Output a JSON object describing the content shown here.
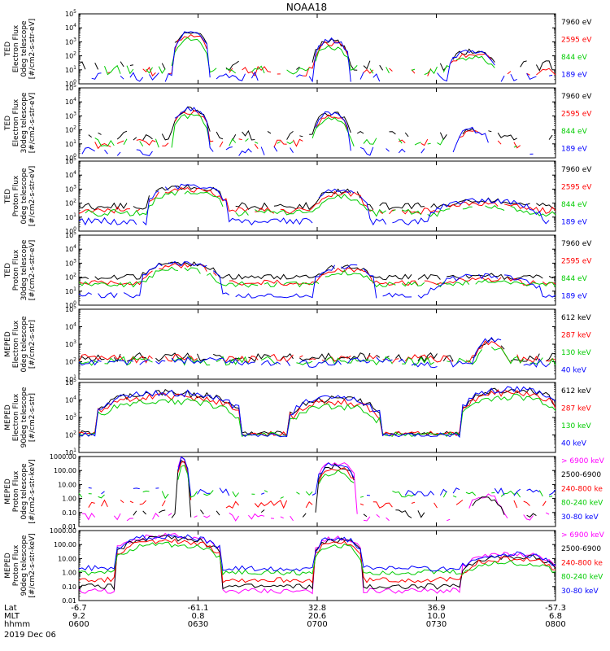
{
  "figure": {
    "title": "NOAA18",
    "date_label": "2019 Dec 06",
    "axis_row_labels": [
      "Lat",
      "MLT",
      "hhmm"
    ],
    "time_axis": {
      "ticks": [
        {
          "lat": "-6.7",
          "mlt": "9.2",
          "hhmm": "0600"
        },
        {
          "lat": "-61.1",
          "mlt": "0.8",
          "hhmm": "0630"
        },
        {
          "lat": "32.8",
          "mlt": "20.6",
          "hhmm": "0700"
        },
        {
          "lat": "36.9",
          "mlt": "10.0",
          "hhmm": "0730"
        },
        {
          "lat": "-57.3",
          "mlt": "6.8",
          "hhmm": "0800"
        }
      ]
    }
  },
  "chart_data": [
    {
      "type": "line",
      "yscale": "log",
      "ylim": [
        1,
        100000
      ],
      "ytick_labels": [
        "10^0",
        "10^1",
        "10^2",
        "10^3",
        "10^4",
        "10^5"
      ],
      "ylabel_lines": [
        "TED",
        "Electron Flux",
        "0deg telescope",
        "[#/cm2-s-str-eV]"
      ],
      "series": [
        {
          "name": "7960 eV",
          "color": "#000000"
        },
        {
          "name": "2595 eV",
          "color": "#ff0000"
        },
        {
          "name": "844 eV",
          "color": "#00cc00"
        },
        {
          "name": "189 eV",
          "color": "#0000ff"
        }
      ],
      "events": [
        [
          30,
          40,
          4000
        ],
        [
          74,
          84,
          1200
        ],
        [
          116,
          130,
          200
        ]
      ],
      "background": [
        20,
        8,
        10,
        3
      ],
      "noise": 0.7,
      "gap_style": "sparse"
    },
    {
      "type": "line",
      "yscale": "log",
      "ylim": [
        1,
        100000
      ],
      "ytick_labels": [
        "10^0",
        "10^1",
        "10^2",
        "10^3",
        "10^4",
        "10^5"
      ],
      "ylabel_lines": [
        "TED",
        "Electron Flux",
        "30deg telescope",
        "[#/cm2-s-str-eV]"
      ],
      "series": [
        {
          "name": "7960 eV",
          "color": "#000000"
        },
        {
          "name": "2595 eV",
          "color": "#ff0000"
        },
        {
          "name": "844 eV",
          "color": "#00cc00"
        },
        {
          "name": "189 eV",
          "color": "#0000ff"
        }
      ],
      "events": [
        [
          30,
          40,
          3000
        ],
        [
          74,
          84,
          1500
        ],
        [
          118,
          128,
          100
        ]
      ],
      "background": [
        40,
        10,
        12,
        3
      ],
      "noise": 0.7,
      "gap_style": "sparse"
    },
    {
      "type": "line",
      "yscale": "log",
      "ylim": [
        1,
        100000
      ],
      "ytick_labels": [
        "10^0",
        "10^1",
        "10^2",
        "10^3",
        "10^4",
        "10^5"
      ],
      "ylabel_lines": [
        "TED",
        "Proton Flux",
        "0deg telescope",
        "[#/cm2-s-str-eV]"
      ],
      "series": [
        {
          "name": "7960 eV",
          "color": "#000000"
        },
        {
          "name": "2595 eV",
          "color": "#ff0000"
        },
        {
          "name": "844 eV",
          "color": "#00cc00"
        },
        {
          "name": "189 eV",
          "color": "#0000ff"
        }
      ],
      "events": [
        [
          22,
          46,
          1500
        ],
        [
          74,
          90,
          800
        ],
        [
          110,
          144,
          150
        ]
      ],
      "background": [
        60,
        30,
        20,
        5
      ],
      "noise": 0.5,
      "gap_style": "dense"
    },
    {
      "type": "line",
      "yscale": "log",
      "ylim": [
        1,
        100000
      ],
      "ytick_labels": [
        "10^0",
        "10^1",
        "10^2",
        "10^3",
        "10^4",
        "10^5"
      ],
      "ylabel_lines": [
        "TED",
        "Proton Flux",
        "30deg telescope",
        "[#/cm2-s-str-eV]"
      ],
      "series": [
        {
          "name": "7960 eV",
          "color": "#000000"
        },
        {
          "name": "2595 eV",
          "color": "#ff0000"
        },
        {
          "name": "844 eV",
          "color": "#00cc00"
        },
        {
          "name": "189 eV",
          "color": "#0000ff"
        }
      ],
      "events": [
        [
          20,
          44,
          1000
        ],
        [
          74,
          92,
          600
        ],
        [
          110,
          144,
          120
        ]
      ],
      "background": [
        100,
        40,
        30,
        5
      ],
      "noise": 0.4,
      "gap_style": "dense"
    },
    {
      "type": "line",
      "yscale": "log",
      "ylim": [
        10,
        100000
      ],
      "ytick_labels": [
        "10^1",
        "10^2",
        "10^3",
        "10^4",
        "10^5"
      ],
      "ylabel_lines": [
        "MEPED",
        "Electron Flux",
        "0deg telescope",
        "[#/cm2-s-str]"
      ],
      "series": [
        {
          "name": "612 keV",
          "color": "#000000"
        },
        {
          "name": "287 keV",
          "color": "#ff0000"
        },
        {
          "name": "130 keV",
          "color": "#00cc00"
        },
        {
          "name": "40 keV",
          "color": "#0000ff"
        }
      ],
      "events": [
        [
          8,
          62,
          120
        ],
        [
          68,
          110,
          120
        ],
        [
          124,
          134,
          1800
        ]
      ],
      "background": [
        180,
        150,
        110,
        80
      ],
      "noise": 0.5,
      "gap_style": "spiky"
    },
    {
      "type": "line",
      "yscale": "log",
      "ylim": [
        10,
        100000
      ],
      "ytick_labels": [
        "10^1",
        "10^2",
        "10^3",
        "10^4",
        "10^5"
      ],
      "ylabel_lines": [
        "MEPED",
        "Electron Flux",
        "90deg telescope",
        "[#/cm2-s-str]"
      ],
      "series": [
        {
          "name": "612 keV",
          "color": "#000000"
        },
        {
          "name": "287 keV",
          "color": "#ff0000"
        },
        {
          "name": "130 keV",
          "color": "#00cc00"
        },
        {
          "name": "40 keV",
          "color": "#0000ff"
        }
      ],
      "events": [
        [
          6,
          50,
          25000
        ],
        [
          66,
          94,
          12000
        ],
        [
          120,
          150,
          40000
        ]
      ],
      "background": [
        130,
        120,
        110,
        100
      ],
      "noise": 0.25,
      "gap_style": "smooth"
    },
    {
      "type": "line",
      "yscale": "log",
      "ylim": [
        0.01,
        1000
      ],
      "ytick_labels": [
        "0.01",
        "0.10",
        "1.00",
        "10.00",
        "100.00",
        "1000.00"
      ],
      "ylabel_lines": [
        "MEPED",
        "Proton Flux",
        "0deg telescope",
        "[#/cm2-s-str-keV]"
      ],
      "series": [
        {
          "name": "> 6900 keV",
          "color": "#ff00ff"
        },
        {
          "name": "2500-6900",
          "color": "#000000"
        },
        {
          "name": "240-800 ke",
          "color": "#ff0000"
        },
        {
          "name": "80-240 keV",
          "color": "#00cc00"
        },
        {
          "name": "30-80 keV",
          "color": "#0000ff"
        }
      ],
      "events": [
        [
          31,
          34,
          900
        ],
        [
          75,
          86,
          300
        ],
        [
          122,
          132,
          1.5
        ]
      ],
      "background": [
        0.05,
        0.08,
        0.4,
        2,
        3
      ],
      "noise": 0.6,
      "gap_style": "sparse"
    },
    {
      "type": "line",
      "yscale": "log",
      "ylim": [
        0.01,
        1000
      ],
      "ytick_labels": [
        "0.01",
        "0.10",
        "1.00",
        "10.00",
        "100.00",
        "1000.00"
      ],
      "ylabel_lines": [
        "MEPED",
        "Proton Flux",
        "90deg telescope",
        "[#/cm2-s-str-keV]"
      ],
      "series": [
        {
          "name": "> 6900 keV",
          "color": "#ff00ff"
        },
        {
          "name": "2500-6900",
          "color": "#000000"
        },
        {
          "name": "240-800 ke",
          "color": "#ff0000"
        },
        {
          "name": "80-240 keV",
          "color": "#00cc00"
        },
        {
          "name": "30-80 keV",
          "color": "#0000ff"
        }
      ],
      "events": [
        [
          12,
          44,
          400
        ],
        [
          74,
          88,
          300
        ],
        [
          120,
          150,
          20
        ]
      ],
      "background": [
        0.05,
        0.1,
        0.3,
        1,
        2
      ],
      "noise": 0.4,
      "gap_style": "smooth"
    }
  ]
}
